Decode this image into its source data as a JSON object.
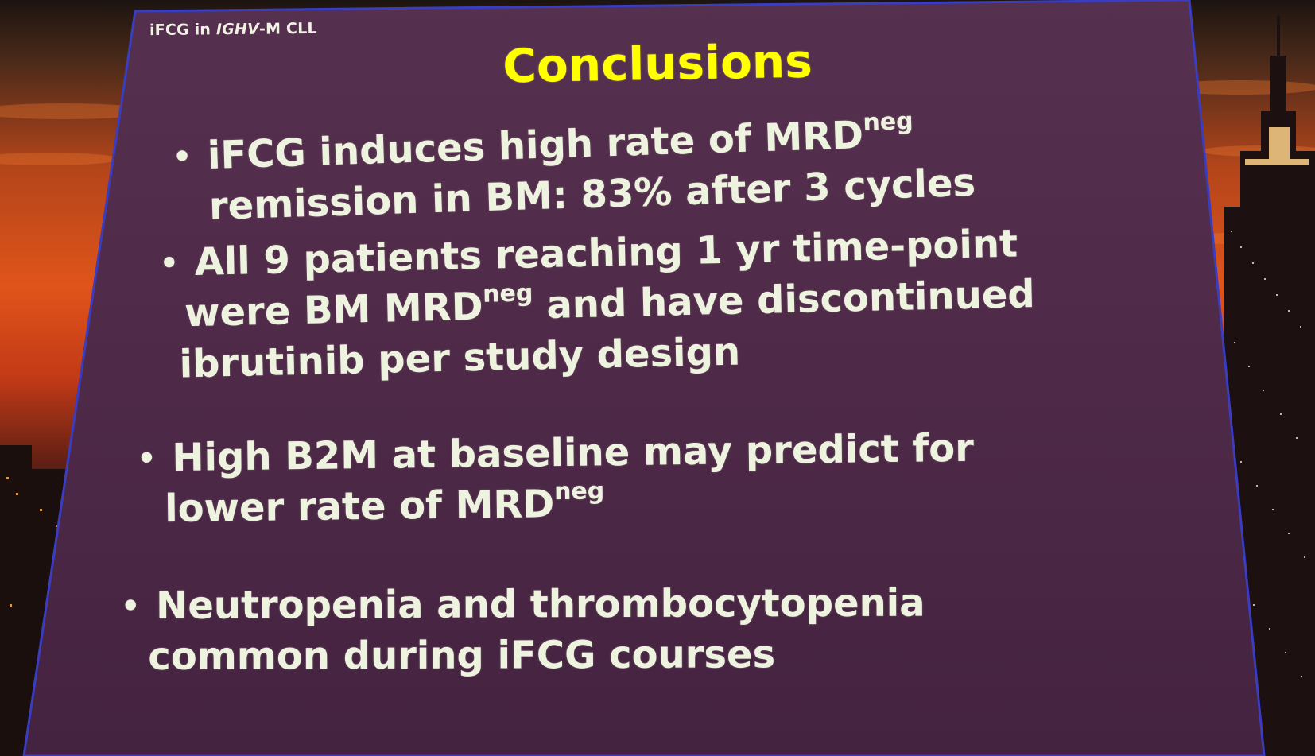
{
  "header_tag": {
    "prefix": "iFCG in ",
    "italic": "IGHV",
    "suffix": "-M CLL"
  },
  "title": "Conclusions",
  "bullets": [
    {
      "lines": [
        {
          "text": "iFCG induces high rate of MRD",
          "sup": "neg",
          "after": ""
        },
        {
          "text": "remission in BM: 83% after 3 cycles",
          "sup": "",
          "after": ""
        }
      ]
    },
    {
      "lines": [
        {
          "text": "All 9 patients reaching 1 yr time-point",
          "sup": "",
          "after": ""
        },
        {
          "text": "were BM MRD",
          "sup": "neg",
          "after": " and have discontinued"
        },
        {
          "text": "ibrutinib per study design",
          "sup": "",
          "after": ""
        }
      ]
    },
    {
      "lines": [
        {
          "text": "High B2M at baseline may predict for",
          "sup": "",
          "after": ""
        },
        {
          "text": "lower rate of MRD",
          "sup": "neg",
          "after": ""
        }
      ]
    },
    {
      "lines": [
        {
          "text": "Neutropenia and thrombocytopenia",
          "sup": "",
          "after": ""
        },
        {
          "text": "common during iFCG courses",
          "sup": "",
          "after": ""
        }
      ]
    }
  ],
  "bullet_glyph": "•",
  "colors": {
    "slide_bg": "#4e2a48",
    "slide_border": "#3a3dc0",
    "title": "#ffff00",
    "body_text": "#eef3df",
    "sky_top": "#1c1410",
    "sky_orange": "#e0541a"
  }
}
